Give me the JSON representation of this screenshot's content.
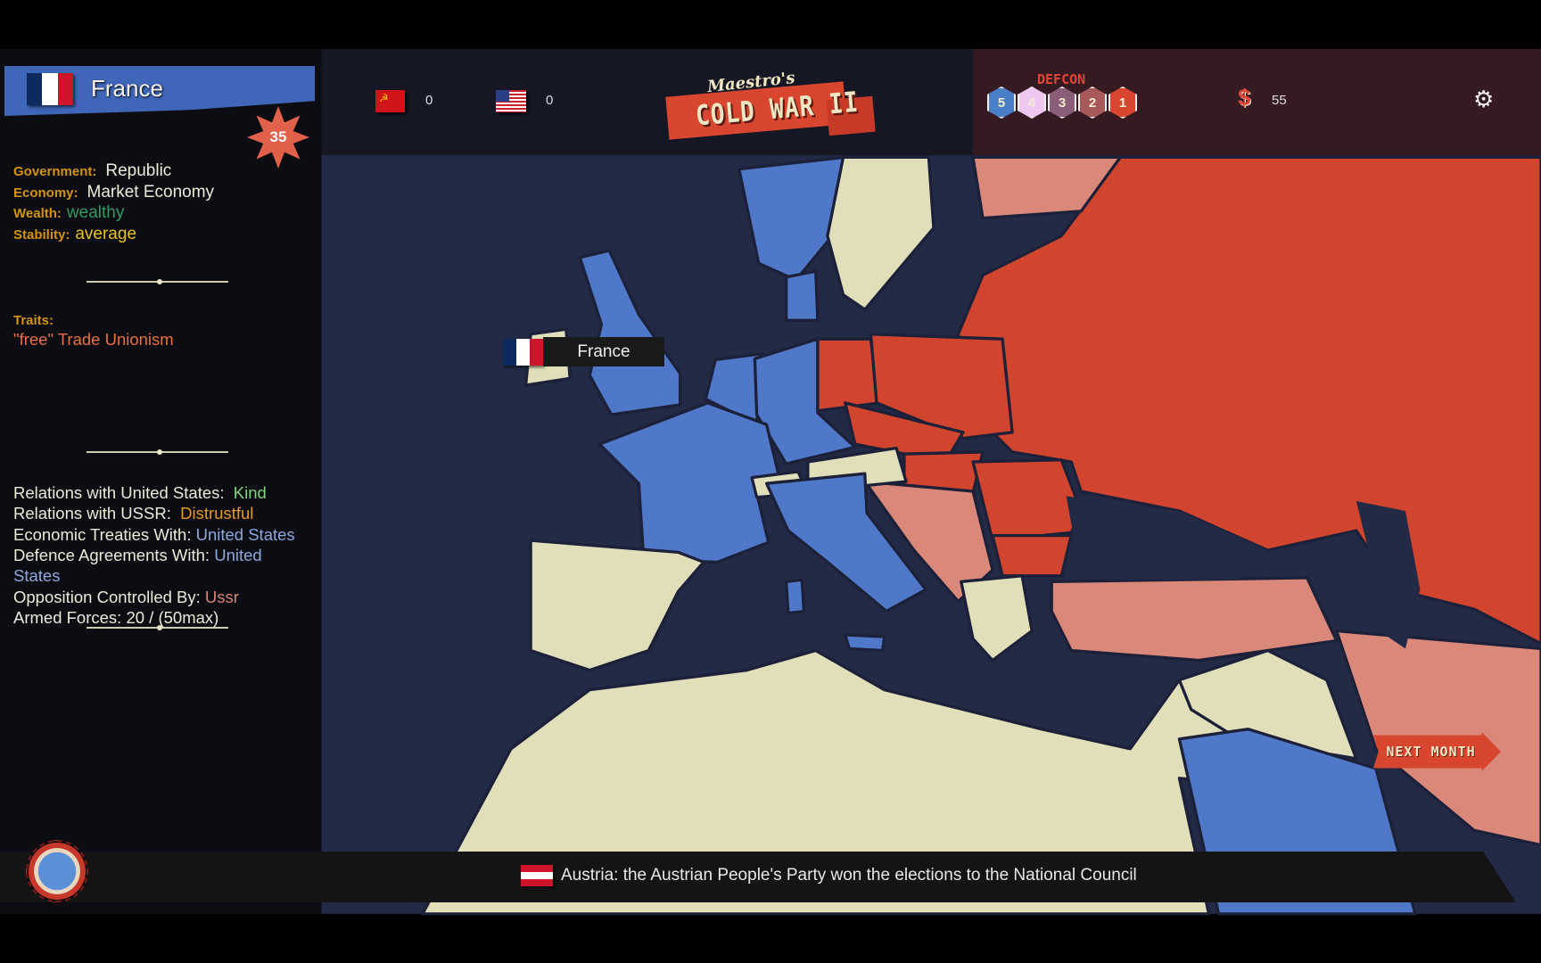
{
  "sidebar": {
    "country": "France",
    "score": "35",
    "stats": [
      {
        "label": "Government:",
        "value": "Republic",
        "color": "#ecebd9"
      },
      {
        "label": "Economy:",
        "value": "Market Economy",
        "color": "#ecebd9"
      },
      {
        "label": "Wealth:",
        "value": "wealthy",
        "color": "#2f9a63"
      },
      {
        "label": "Stability:",
        "value": "average",
        "color": "#e8c21a"
      }
    ],
    "traits_label": "Traits:",
    "traits_value": "\"free\" Trade Unionism",
    "relations": [
      {
        "label": "Relations with United States:  ",
        "value": "Kind",
        "color": "#7fd67a"
      },
      {
        "label": "Relations with USSR:  ",
        "value": "Distrustful",
        "color": "#e59a1c"
      },
      {
        "label": "Economic Treaties With: ",
        "value": "United States",
        "color": "#8ea9dc"
      },
      {
        "label": "Defence Agreements With: ",
        "value": "United",
        "color": "#8ea9dc"
      },
      {
        "label": "",
        "value": "States",
        "color": "#8ea9dc"
      },
      {
        "label": "Opposition Controlled By: ",
        "value": "Ussr",
        "color": "#d98474"
      },
      {
        "label": "Armed Forces: ",
        "value": "20 / (50max)",
        "color": "#ecebd9"
      }
    ]
  },
  "header": {
    "ussr_score": "0",
    "us_score": "0",
    "logo_top": "Maestro's",
    "logo_bottom": "COLD WAR II",
    "defcon_label": "DEFCON",
    "defcon_levels": [
      "5",
      "4",
      "3",
      "2",
      "1"
    ],
    "defcon_colors": [
      "#4a7fc8",
      "#efc8ef",
      "#8a5d78",
      "#a85a5a",
      "#d9462f"
    ],
    "money": "55",
    "money_icon": "dollar-icon",
    "settings_icon": "gear-icon"
  },
  "map": {
    "tooltip": "France",
    "colors": {
      "sea": "#222a46",
      "western": "#5078c8",
      "soviet": "#d1442e",
      "soviet_influence": "#d9887a",
      "neutral": "#e0dfba"
    }
  },
  "next_month": "NEXT MONTH",
  "news": {
    "text": "Austria:  the Austrian People's Party won the elections to the National Council"
  }
}
